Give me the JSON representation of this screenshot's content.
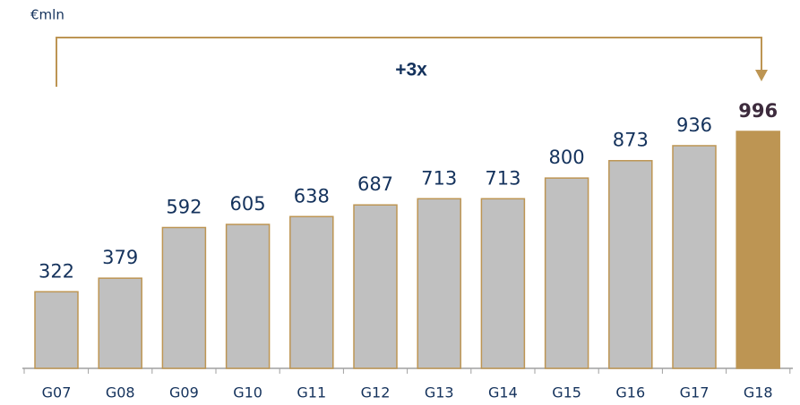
{
  "chart_data": {
    "type": "bar",
    "unit": "€mln",
    "annotation": "+3x",
    "categories": [
      "G07",
      "G08",
      "G09",
      "G10",
      "G11",
      "G12",
      "G13",
      "G14",
      "G15",
      "G16",
      "G17",
      "G18"
    ],
    "values": [
      322,
      379,
      592,
      605,
      638,
      687,
      713,
      713,
      800,
      873,
      936,
      996
    ],
    "colors": [
      "#c0c0c0",
      "#c0c0c0",
      "#c0c0c0",
      "#c0c0c0",
      "#c0c0c0",
      "#c0c0c0",
      "#c0c0c0",
      "#c0c0c0",
      "#c0c0c0",
      "#c0c0c0",
      "#c0c0c0",
      "#bd9553"
    ],
    "label_colors": [
      "#14325c",
      "#14325c",
      "#14325c",
      "#14325c",
      "#14325c",
      "#14325c",
      "#14325c",
      "#14325c",
      "#14325c",
      "#14325c",
      "#14325c",
      "#3d2b3d"
    ]
  }
}
